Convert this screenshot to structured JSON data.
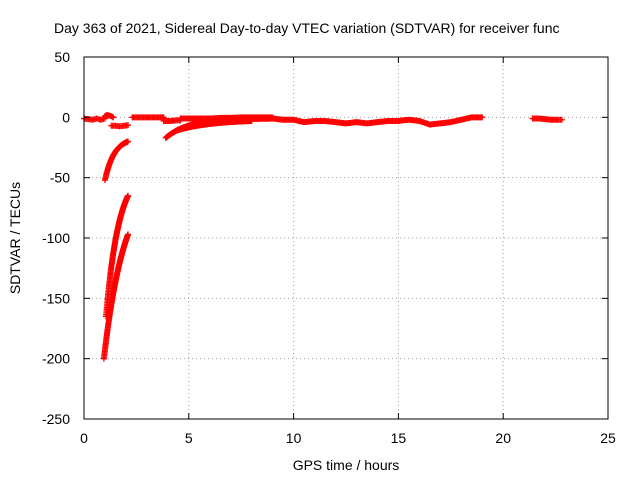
{
  "chart_data": {
    "type": "scatter",
    "title": "Day 363 of 2021, Sidereal Day-to-day VTEC variation (SDTVAR) for receiver func",
    "xlabel": "GPS time / hours",
    "ylabel": "SDTVAR / TECUs",
    "xlim": [
      0,
      25
    ],
    "ylim": [
      -250,
      50
    ],
    "xticks": [
      "0",
      "5",
      "10",
      "15",
      "20",
      "25"
    ],
    "yticks": [
      "-250",
      "-200",
      "-150",
      "-100",
      "-50",
      "0",
      "50"
    ],
    "grid": true,
    "marker": "plus",
    "color": "#ff0000",
    "segments": [
      {
        "x0": 0.0,
        "x1": 1.0,
        "kind": "points",
        "points": [
          [
            0.0,
            -1
          ],
          [
            0.2,
            -1.5
          ],
          [
            0.4,
            -2
          ],
          [
            0.6,
            -1
          ],
          [
            0.8,
            -2
          ],
          [
            1.0,
            -1
          ]
        ]
      },
      {
        "x0": 1.0,
        "x1": 1.4,
        "kind": "points",
        "points": [
          [
            1.0,
            1
          ],
          [
            1.1,
            2
          ],
          [
            1.2,
            1.5
          ],
          [
            1.3,
            1
          ],
          [
            1.4,
            0
          ]
        ]
      },
      {
        "x0": 1.3,
        "x1": 2.1,
        "kind": "points",
        "points": [
          [
            1.3,
            -7
          ],
          [
            1.5,
            -7
          ],
          [
            1.7,
            -7.5
          ],
          [
            1.9,
            -7
          ],
          [
            2.1,
            -6.5
          ]
        ]
      },
      {
        "x0": 2.3,
        "x1": 3.8,
        "kind": "points",
        "points": [
          [
            2.3,
            0
          ],
          [
            2.6,
            0
          ],
          [
            2.9,
            0
          ],
          [
            3.2,
            0
          ],
          [
            3.5,
            0
          ],
          [
            3.8,
            0
          ]
        ]
      },
      {
        "x0": 3.8,
        "x1": 4.6,
        "kind": "points",
        "points": [
          [
            3.8,
            -3
          ],
          [
            4.1,
            -3
          ],
          [
            4.4,
            -2.5
          ],
          [
            4.6,
            -2.5
          ]
        ]
      },
      {
        "x0": 4.6,
        "x1": 9.0,
        "kind": "points",
        "points": [
          [
            4.6,
            -1
          ],
          [
            5.0,
            -1
          ],
          [
            5.5,
            -1
          ],
          [
            6.0,
            -1
          ],
          [
            6.5,
            -0.5
          ],
          [
            7.0,
            -0.5
          ],
          [
            7.5,
            0
          ],
          [
            8.0,
            0
          ],
          [
            8.5,
            0
          ],
          [
            9.0,
            0
          ]
        ]
      },
      {
        "x0": 9.0,
        "x1": 19.0,
        "kind": "points",
        "points": [
          [
            9.0,
            -1
          ],
          [
            9.5,
            -2
          ],
          [
            10.0,
            -2
          ],
          [
            10.5,
            -4
          ],
          [
            11.0,
            -3
          ],
          [
            11.5,
            -3
          ],
          [
            12.0,
            -4
          ],
          [
            12.5,
            -5
          ],
          [
            13.0,
            -4
          ],
          [
            13.5,
            -5
          ],
          [
            14.0,
            -4
          ],
          [
            14.5,
            -3
          ],
          [
            15.0,
            -3
          ],
          [
            15.5,
            -2
          ],
          [
            16.0,
            -3
          ],
          [
            16.5,
            -6
          ],
          [
            17.0,
            -5
          ],
          [
            17.5,
            -4
          ],
          [
            18.0,
            -2
          ],
          [
            18.5,
            0
          ],
          [
            19.0,
            0
          ]
        ]
      },
      {
        "x0": 21.4,
        "x1": 22.8,
        "kind": "points",
        "points": [
          [
            21.4,
            -1
          ],
          [
            21.7,
            -1
          ],
          [
            22.0,
            -1.5
          ],
          [
            22.3,
            -2
          ],
          [
            22.6,
            -2
          ],
          [
            22.8,
            -2
          ]
        ]
      },
      {
        "x0": 1.0,
        "x1": 2.1,
        "kind": "decay",
        "y0": -52,
        "y1": -20,
        "rate": 2.2
      },
      {
        "x0": 3.9,
        "x1": 9.0,
        "kind": "decay",
        "y0": -17,
        "y1": -1,
        "rate": 0.9
      },
      {
        "x0": 4.4,
        "x1": 8.0,
        "kind": "decay",
        "y0": -11,
        "y1": -3,
        "rate": 0.6
      },
      {
        "x0": 0.95,
        "x1": 2.1,
        "kind": "decay",
        "y0": -200,
        "y1": -97,
        "rate": 1.0
      },
      {
        "x0": 1.05,
        "x1": 2.1,
        "kind": "decay",
        "y0": -165,
        "y1": -65,
        "rate": 1.6
      }
    ]
  }
}
